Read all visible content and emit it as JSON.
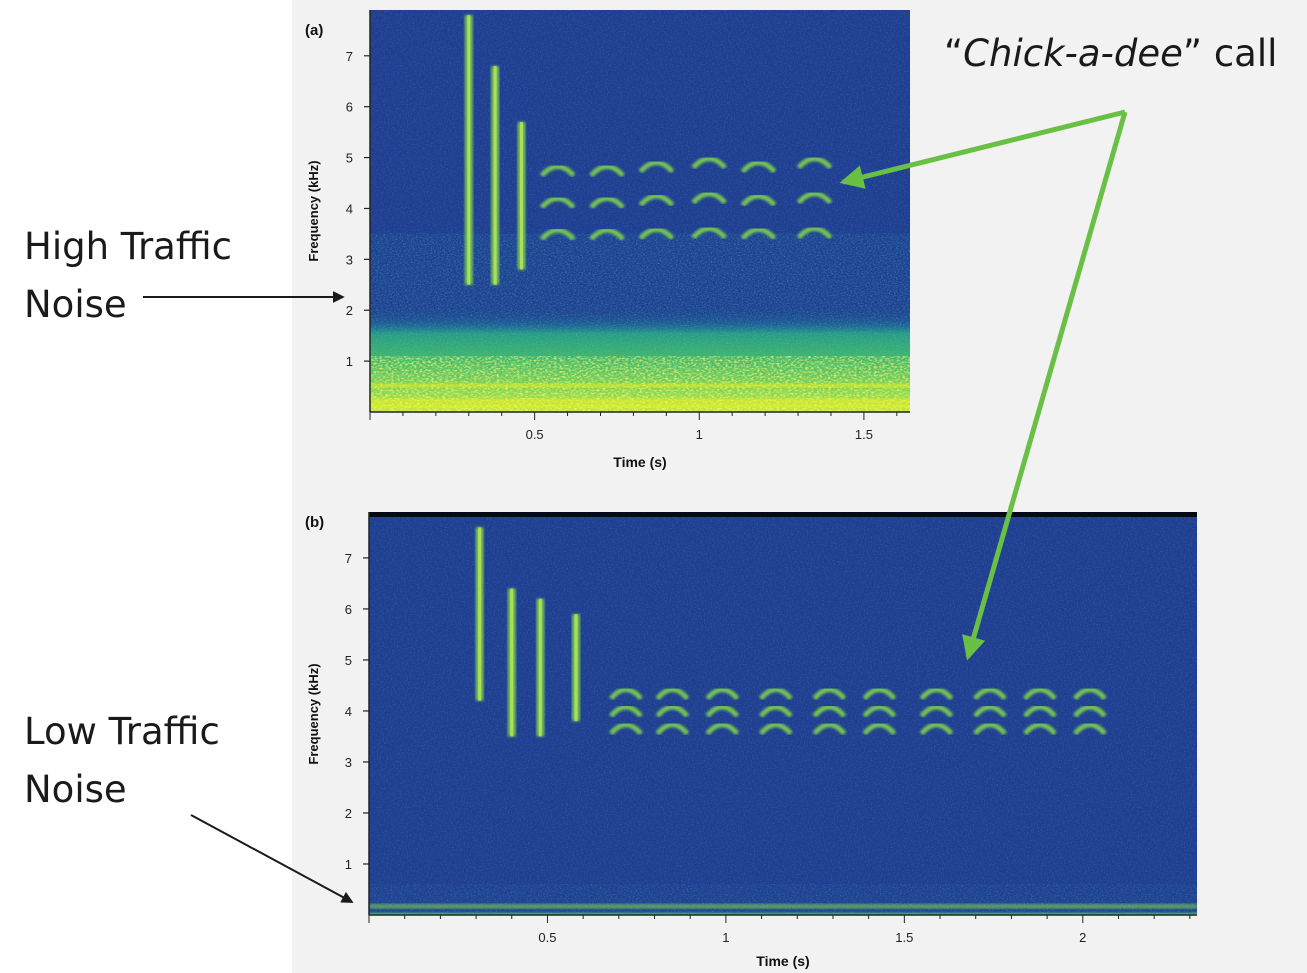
{
  "annotations": {
    "high_traffic": [
      "High Traffic",
      "Noise"
    ],
    "low_traffic": [
      "Low Traffic",
      "Noise"
    ],
    "call_quote_open": "“",
    "call_name": "Chick-a-dee",
    "call_suffix": "” call"
  },
  "colors": {
    "arrow": "#6abf45",
    "pointer": "#1a1a1a",
    "spectrogram_bg": "#1f3e91",
    "spectrogram_mid": "#1e8a8a",
    "spectrogram_high": "#7fd34e",
    "spectrogram_peak": "#f3f01c"
  },
  "chart_data": [
    {
      "type": "heatmap",
      "panel_label": "(a)",
      "xlabel": "Time (s)",
      "ylabel": "Frequency (kHz)",
      "xlim": [
        0,
        1.64
      ],
      "ylim": [
        0,
        7.9
      ],
      "x_ticks": [
        0.5,
        1,
        1.5
      ],
      "x_tick_labels": [
        "0.5",
        "1",
        "1.5"
      ],
      "y_ticks": [
        1,
        2,
        3,
        4,
        5,
        6,
        7
      ],
      "y_tick_labels": [
        "1",
        "2",
        "3",
        "4",
        "5",
        "6",
        "7"
      ],
      "noise_band_khz": [
        0,
        3.5
      ],
      "call_notes": [
        {
          "t": 0.3,
          "fmin": 2.5,
          "fmax": 7.8,
          "kind": "chick"
        },
        {
          "t": 0.38,
          "fmin": 2.5,
          "fmax": 6.8,
          "kind": "chick"
        },
        {
          "t": 0.46,
          "fmin": 2.8,
          "fmax": 5.7,
          "kind": "chick"
        },
        {
          "t": 0.57,
          "fmin": 3.2,
          "fmax": 5.2,
          "kind": "dee"
        },
        {
          "t": 0.72,
          "fmin": 3.2,
          "fmax": 5.2,
          "kind": "dee"
        },
        {
          "t": 0.87,
          "fmin": 3.2,
          "fmax": 5.3,
          "kind": "dee"
        },
        {
          "t": 1.03,
          "fmin": 3.2,
          "fmax": 5.4,
          "kind": "dee"
        },
        {
          "t": 1.18,
          "fmin": 3.2,
          "fmax": 5.3,
          "kind": "dee"
        },
        {
          "t": 1.35,
          "fmin": 3.2,
          "fmax": 5.4,
          "kind": "dee"
        }
      ]
    },
    {
      "type": "heatmap",
      "panel_label": "(b)",
      "xlabel": "Time (s)",
      "ylabel": "Frequency (kHz)",
      "xlim": [
        0,
        2.32
      ],
      "ylim": [
        0,
        7.9
      ],
      "x_ticks": [
        0.5,
        1,
        1.5,
        2
      ],
      "x_tick_labels": [
        "0.5",
        "1",
        "1.5",
        "2"
      ],
      "y_ticks": [
        1,
        2,
        3,
        4,
        5,
        6,
        7
      ],
      "y_tick_labels": [
        "1",
        "2",
        "3",
        "4",
        "5",
        "6",
        "7"
      ],
      "noise_band_khz": [
        0,
        0.6
      ],
      "call_notes": [
        {
          "t": 0.31,
          "fmin": 4.2,
          "fmax": 7.6,
          "kind": "chick"
        },
        {
          "t": 0.4,
          "fmin": 3.5,
          "fmax": 6.4,
          "kind": "chick"
        },
        {
          "t": 0.48,
          "fmin": 3.5,
          "fmax": 6.2,
          "kind": "chick"
        },
        {
          "t": 0.58,
          "fmin": 3.8,
          "fmax": 5.9,
          "kind": "chick"
        },
        {
          "t": 0.72,
          "fmin": 3.5,
          "fmax": 4.6,
          "kind": "dee"
        },
        {
          "t": 0.85,
          "fmin": 3.5,
          "fmax": 4.6,
          "kind": "dee"
        },
        {
          "t": 0.99,
          "fmin": 3.5,
          "fmax": 4.6,
          "kind": "dee"
        },
        {
          "t": 1.14,
          "fmin": 3.5,
          "fmax": 4.6,
          "kind": "dee"
        },
        {
          "t": 1.29,
          "fmin": 3.5,
          "fmax": 4.6,
          "kind": "dee"
        },
        {
          "t": 1.43,
          "fmin": 3.5,
          "fmax": 4.6,
          "kind": "dee"
        },
        {
          "t": 1.59,
          "fmin": 3.5,
          "fmax": 4.6,
          "kind": "dee"
        },
        {
          "t": 1.74,
          "fmin": 3.5,
          "fmax": 4.6,
          "kind": "dee"
        },
        {
          "t": 1.88,
          "fmin": 3.5,
          "fmax": 4.6,
          "kind": "dee"
        },
        {
          "t": 2.02,
          "fmin": 3.5,
          "fmax": 4.6,
          "kind": "dee"
        }
      ]
    }
  ]
}
